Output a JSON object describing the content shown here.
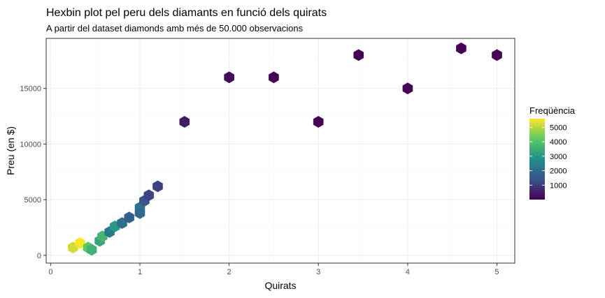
{
  "chart_data": {
    "type": "hexbin",
    "title": "Hexbin plot pel peru dels diamants en funció dels quirats",
    "subtitle": "A partir del dataset diamonds amb més de 50.000 observacions",
    "xlabel": "Quirats",
    "ylabel": "Preu (en $)",
    "xlim": [
      -0.05,
      5.2
    ],
    "ylim": [
      -700,
      19500
    ],
    "x_ticks": [
      0,
      1,
      2,
      3,
      4,
      5
    ],
    "y_ticks": [
      0,
      5000,
      10000,
      15000
    ],
    "grid": true,
    "legend": {
      "title": "Freqüència",
      "position": "right",
      "ticks": [
        1000,
        2000,
        3000,
        4000,
        5000
      ],
      "range": [
        1,
        5600
      ],
      "colors": [
        "#440154",
        "#3b528b",
        "#21908c",
        "#5dc863",
        "#fde725"
      ]
    },
    "bins": [
      {
        "x": 0.25,
        "y": 700,
        "count": 5200
      },
      {
        "x": 0.33,
        "y": 1100,
        "count": 5600
      },
      {
        "x": 0.42,
        "y": 700,
        "count": 4200
      },
      {
        "x": 0.46,
        "y": 500,
        "count": 3600
      },
      {
        "x": 0.55,
        "y": 1300,
        "count": 3300
      },
      {
        "x": 0.58,
        "y": 1700,
        "count": 3700
      },
      {
        "x": 0.66,
        "y": 2100,
        "count": 2300
      },
      {
        "x": 0.72,
        "y": 2600,
        "count": 3000
      },
      {
        "x": 0.8,
        "y": 2900,
        "count": 2000
      },
      {
        "x": 0.88,
        "y": 3400,
        "count": 1700
      },
      {
        "x": 1.0,
        "y": 4300,
        "count": 2200
      },
      {
        "x": 1.0,
        "y": 3800,
        "count": 1900
      },
      {
        "x": 1.05,
        "y": 4900,
        "count": 1500
      },
      {
        "x": 1.1,
        "y": 5400,
        "count": 1200
      },
      {
        "x": 1.2,
        "y": 6200,
        "count": 1100
      },
      {
        "x": 1.5,
        "y": 12000,
        "count": 450
      },
      {
        "x": 2.0,
        "y": 16000,
        "count": 200
      },
      {
        "x": 2.5,
        "y": 16000,
        "count": 40
      },
      {
        "x": 3.0,
        "y": 12000,
        "count": 8
      },
      {
        "x": 3.45,
        "y": 18000,
        "count": 2
      },
      {
        "x": 4.0,
        "y": 15000,
        "count": 1
      },
      {
        "x": 4.6,
        "y": 18600,
        "count": 1
      },
      {
        "x": 5.0,
        "y": 18000,
        "count": 1
      }
    ]
  }
}
